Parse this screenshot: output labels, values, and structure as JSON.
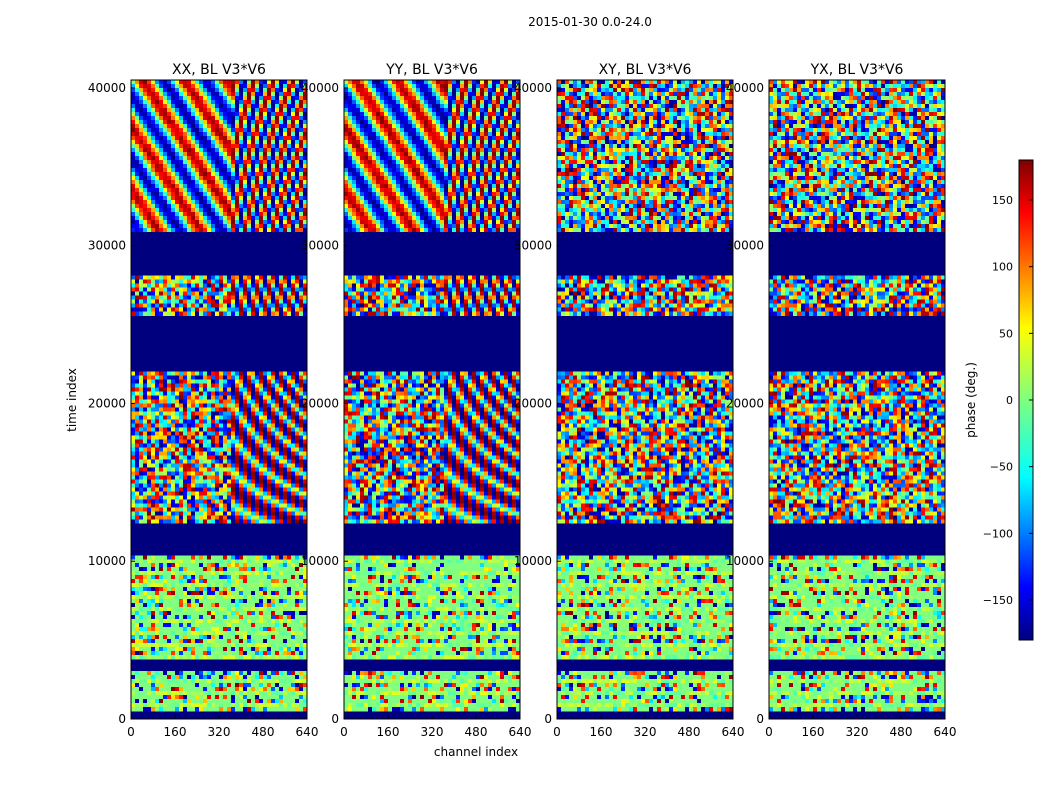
{
  "figure_title": "2015-01-30 0.0-24.0",
  "chart_data": {
    "type": "heatmap",
    "title": "2015-01-30 0.0-24.0",
    "xlabel": "channel index",
    "ylabel": "time index",
    "xlim": [
      0,
      640
    ],
    "ylim": [
      0,
      40500
    ],
    "xticks": [
      0,
      160,
      320,
      480,
      640
    ],
    "yticks": [
      0,
      10000,
      20000,
      30000,
      40000
    ],
    "panels": [
      {
        "name": "XX, BL V3*V6",
        "character": "fringe",
        "early_fringe": true
      },
      {
        "name": "YY, BL V3*V6",
        "character": "fringe",
        "early_fringe": true
      },
      {
        "name": "XY, BL V3*V6",
        "character": "noise",
        "early_fringe": false
      },
      {
        "name": "YX, BL V3*V6",
        "character": "noise",
        "early_fringe": false
      }
    ],
    "flagged_time_ranges": [
      [
        31000,
        28000
      ],
      [
        25500,
        22000
      ],
      [
        12500,
        10500
      ],
      [
        3700,
        3100
      ],
      [
        500,
        0
      ]
    ],
    "colorbar": {
      "label": "phase (deg.)",
      "range": [
        -180,
        180
      ],
      "ticks": [
        -150,
        -100,
        -50,
        0,
        50,
        100,
        150
      ],
      "colormap": "jet"
    }
  }
}
